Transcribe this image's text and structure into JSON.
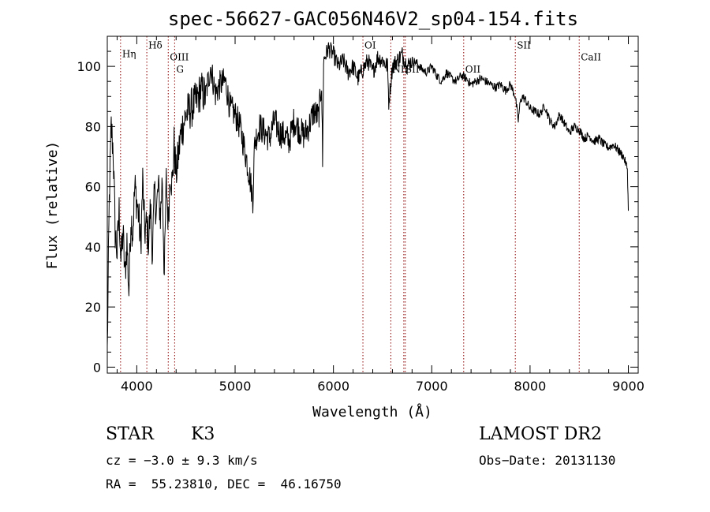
{
  "chart_data": {
    "type": "line",
    "title": "spec-56627-GAC056N46V2_sp04-154.fits",
    "xlabel": "Wavelength (Å)",
    "ylabel": "Flux (relative)",
    "xlim": [
      3700,
      9100
    ],
    "ylim": [
      -2,
      110
    ],
    "xticks": [
      4000,
      5000,
      6000,
      7000,
      8000,
      9000
    ],
    "yticks": [
      0,
      20,
      40,
      60,
      80,
      100
    ],
    "grid": false,
    "line_color": "#000000",
    "marker_color": "#8b0000",
    "series": [
      {
        "x": [
          3700,
          3720,
          3740,
          3760,
          3780,
          3800,
          3820,
          3840,
          3860,
          3880,
          3900,
          3920,
          3940,
          3960,
          3980,
          4000,
          4020,
          4040,
          4060,
          4080,
          4100,
          4120,
          4140,
          4160,
          4180,
          4200,
          4220,
          4240,
          4260,
          4280,
          4300,
          4320,
          4340,
          4360,
          4380,
          4400,
          4450,
          4500,
          4550,
          4600,
          4650,
          4700,
          4750,
          4800,
          4850,
          4900,
          4950,
          5000,
          5050,
          5100,
          5150,
          5180,
          5200,
          5250,
          5300,
          5350,
          5400,
          5450,
          5500,
          5550,
          5600,
          5650,
          5700,
          5750,
          5800,
          5850,
          5880,
          5890,
          5900,
          5950,
          6000,
          6050,
          6100,
          6150,
          6200,
          6250,
          6300,
          6350,
          6400,
          6450,
          6500,
          6550,
          6563,
          6600,
          6650,
          6700,
          6750,
          6800,
          6850,
          6900,
          6950,
          7000,
          7050,
          7100,
          7150,
          7200,
          7250,
          7300,
          7350,
          7400,
          7450,
          7500,
          7550,
          7600,
          7650,
          7700,
          7750,
          7800,
          7850,
          7880,
          7900,
          7920,
          7950,
          8000,
          8050,
          8100,
          8150,
          8200,
          8250,
          8300,
          8350,
          8400,
          8450,
          8500,
          8550,
          8600,
          8650,
          8700,
          8750,
          8800,
          8850,
          8900,
          8950,
          8990,
          9000
        ],
        "y": [
          5,
          55,
          80,
          72,
          45,
          38,
          52,
          35,
          45,
          30,
          42,
          25,
          50,
          45,
          60,
          55,
          50,
          40,
          62,
          45,
          47,
          42,
          53,
          38,
          58,
          52,
          60,
          50,
          63,
          30,
          62,
          48,
          66,
          60,
          74,
          64,
          78,
          84,
          86,
          88,
          92,
          90,
          100,
          91,
          94,
          95,
          86,
          84,
          80,
          72,
          63,
          56,
          75,
          80,
          78,
          76,
          82,
          78,
          77,
          75,
          82,
          79,
          77,
          80,
          85,
          83,
          95,
          68,
          102,
          106,
          104,
          100,
          102,
          98,
          100,
          96,
          99,
          102,
          98,
          103,
          102,
          100,
          88,
          100,
          102,
          104,
          100,
          102,
          101,
          99,
          98,
          100,
          97,
          95,
          98,
          96,
          95,
          97,
          96,
          94,
          95,
          96,
          95,
          94,
          93,
          94,
          92,
          94,
          90,
          82,
          88,
          90,
          89,
          86,
          85,
          84,
          87,
          82,
          80,
          84,
          81,
          78,
          80,
          79,
          76,
          77,
          75,
          76,
          74,
          73,
          74,
          72,
          70,
          66,
          52
        ]
      }
    ],
    "lines": [
      {
        "label": "Hη",
        "x": 3835,
        "label_y": 103,
        "italic_sub": true
      },
      {
        "label": "Hδ",
        "x": 4102,
        "label_y": 106,
        "italic_sub": true
      },
      {
        "label": "OIII",
        "x": 4320,
        "label_y": 102
      },
      {
        "label": "G",
        "x": 4385,
        "label_y": 98
      },
      {
        "label": "OI",
        "x": 6300,
        "label_y": 106
      },
      {
        "label": "NII",
        "x": 6584,
        "label_y": 98
      },
      {
        "label": "SII",
        "x": 6716,
        "label_y": 98
      },
      {
        "label": "",
        "x": 6731,
        "label_y": 98
      },
      {
        "label": "OII",
        "x": 7325,
        "label_y": 98
      },
      {
        "label": "SII",
        "x": 7850,
        "label_y": 106
      },
      {
        "label": "CaII",
        "x": 8500,
        "label_y": 102
      }
    ]
  },
  "info": {
    "object_class": "STAR",
    "subclass": "K3",
    "survey": "LAMOST DR2",
    "cz": "cz = −3.0 ± 9.3 km/s",
    "obs_date": "Obs−Date: 20131130",
    "radec": "RA =  55.23810, DEC =  46.16750"
  }
}
